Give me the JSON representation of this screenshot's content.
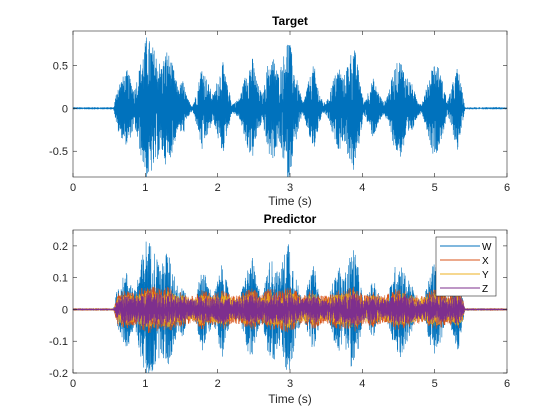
{
  "chart_data": [
    {
      "type": "line",
      "title": "Target",
      "xlabel": "Time (s)",
      "ylabel": "",
      "xlim": [
        0,
        6
      ],
      "ylim": [
        -0.8,
        0.9
      ],
      "xticks": [
        0,
        1,
        2,
        3,
        4,
        5,
        6
      ],
      "xtick_labels": [
        "0",
        "1",
        "2",
        "3",
        "4",
        "5",
        "6"
      ],
      "yticks": [
        -0.5,
        0,
        0.5
      ],
      "ytick_labels": [
        "-0.5",
        "0",
        "0.5"
      ],
      "grid": false,
      "series": [
        {
          "color": "#0072BD",
          "style": "dense audio waveform",
          "signal_start": 0.57,
          "signal_end": 5.4,
          "envelope": [
            {
              "x": 0.0,
              "a": 0.004
            },
            {
              "x": 0.56,
              "a": 0.004
            },
            {
              "x": 0.62,
              "a": 0.28
            },
            {
              "x": 0.75,
              "a": 0.45
            },
            {
              "x": 0.85,
              "a": 0.22
            },
            {
              "x": 0.95,
              "a": 0.6
            },
            {
              "x": 1.02,
              "a": 0.86
            },
            {
              "x": 1.12,
              "a": 0.7
            },
            {
              "x": 1.22,
              "a": 0.5
            },
            {
              "x": 1.3,
              "a": 0.7
            },
            {
              "x": 1.38,
              "a": 0.5
            },
            {
              "x": 1.45,
              "a": 0.25
            },
            {
              "x": 1.52,
              "a": 0.33
            },
            {
              "x": 1.58,
              "a": 0.12
            },
            {
              "x": 1.65,
              "a": 0.03
            },
            {
              "x": 1.72,
              "a": 0.22
            },
            {
              "x": 1.78,
              "a": 0.52
            },
            {
              "x": 1.86,
              "a": 0.32
            },
            {
              "x": 1.94,
              "a": 0.15
            },
            {
              "x": 2.0,
              "a": 0.35
            },
            {
              "x": 2.07,
              "a": 0.55
            },
            {
              "x": 2.13,
              "a": 0.3
            },
            {
              "x": 2.2,
              "a": 0.05
            },
            {
              "x": 2.3,
              "a": 0.12
            },
            {
              "x": 2.4,
              "a": 0.45
            },
            {
              "x": 2.48,
              "a": 0.6
            },
            {
              "x": 2.55,
              "a": 0.3
            },
            {
              "x": 2.62,
              "a": 0.15
            },
            {
              "x": 2.7,
              "a": 0.55
            },
            {
              "x": 2.78,
              "a": 0.6
            },
            {
              "x": 2.84,
              "a": 0.4
            },
            {
              "x": 2.92,
              "a": 0.65
            },
            {
              "x": 2.98,
              "a": 0.88
            },
            {
              "x": 3.05,
              "a": 0.5
            },
            {
              "x": 3.12,
              "a": 0.25
            },
            {
              "x": 3.18,
              "a": 0.06
            },
            {
              "x": 3.25,
              "a": 0.3
            },
            {
              "x": 3.33,
              "a": 0.52
            },
            {
              "x": 3.4,
              "a": 0.2
            },
            {
              "x": 3.46,
              "a": 0.06
            },
            {
              "x": 3.52,
              "a": 0.1
            },
            {
              "x": 3.6,
              "a": 0.35
            },
            {
              "x": 3.68,
              "a": 0.5
            },
            {
              "x": 3.74,
              "a": 0.35
            },
            {
              "x": 3.8,
              "a": 0.55
            },
            {
              "x": 3.88,
              "a": 0.75
            },
            {
              "x": 3.95,
              "a": 0.45
            },
            {
              "x": 4.02,
              "a": 0.06
            },
            {
              "x": 4.08,
              "a": 0.2
            },
            {
              "x": 4.15,
              "a": 0.35
            },
            {
              "x": 4.22,
              "a": 0.2
            },
            {
              "x": 4.3,
              "a": 0.06
            },
            {
              "x": 4.38,
              "a": 0.25
            },
            {
              "x": 4.45,
              "a": 0.5
            },
            {
              "x": 4.53,
              "a": 0.58
            },
            {
              "x": 4.6,
              "a": 0.4
            },
            {
              "x": 4.68,
              "a": 0.3
            },
            {
              "x": 4.75,
              "a": 0.12
            },
            {
              "x": 4.82,
              "a": 0.05
            },
            {
              "x": 4.9,
              "a": 0.28
            },
            {
              "x": 4.98,
              "a": 0.55
            },
            {
              "x": 5.05,
              "a": 0.5
            },
            {
              "x": 5.12,
              "a": 0.28
            },
            {
              "x": 5.18,
              "a": 0.08
            },
            {
              "x": 5.25,
              "a": 0.3
            },
            {
              "x": 5.32,
              "a": 0.5
            },
            {
              "x": 5.38,
              "a": 0.2
            },
            {
              "x": 5.42,
              "a": 0.006
            },
            {
              "x": 6.0,
              "a": 0.004
            }
          ]
        }
      ]
    },
    {
      "type": "line",
      "title": "Predictor",
      "xlabel": "Time (s)",
      "ylabel": "",
      "xlim": [
        0,
        6
      ],
      "ylim": [
        -0.2,
        0.25
      ],
      "xticks": [
        0,
        1,
        2,
        3,
        4,
        5,
        6
      ],
      "xtick_labels": [
        "0",
        "1",
        "2",
        "3",
        "4",
        "5",
        "6"
      ],
      "yticks": [
        -0.2,
        -0.1,
        0,
        0.1,
        0.2
      ],
      "ytick_labels": [
        "-0.2",
        "-0.1",
        "0",
        "0.1",
        "0.2"
      ],
      "grid": false,
      "legend_position": "top-right",
      "series": [
        {
          "name": "W",
          "color": "#0072BD",
          "scale": 0.24
        },
        {
          "name": "X",
          "color": "#D95319",
          "scale": 0.075
        },
        {
          "name": "Y",
          "color": "#EDB120",
          "scale": 0.06
        },
        {
          "name": "Z",
          "color": "#7E2F8E",
          "scale": 0.055
        }
      ]
    }
  ]
}
